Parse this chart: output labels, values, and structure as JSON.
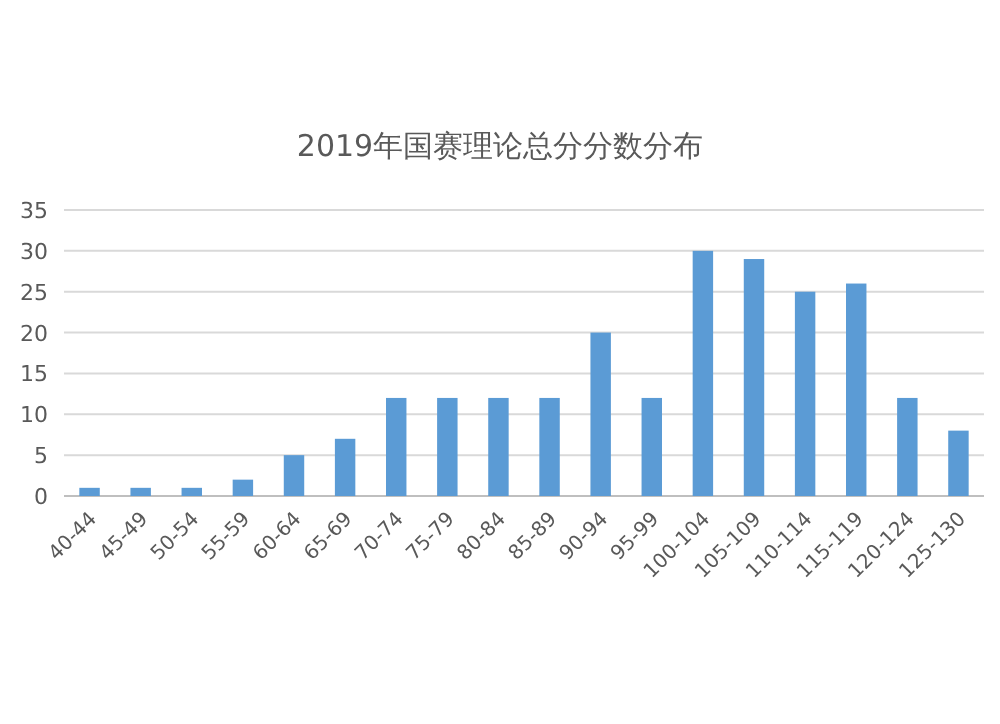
{
  "chart_data": {
    "type": "bar",
    "title": "2019年国赛理论总分分数分布",
    "categories": [
      "40-44",
      "45-49",
      "50-54",
      "55-59",
      "60-64",
      "65-69",
      "70-74",
      "75-79",
      "80-84",
      "85-89",
      "90-94",
      "95-99",
      "100-104",
      "105-109",
      "110-114",
      "115-119",
      "120-124",
      "125-130"
    ],
    "values": [
      1,
      1,
      1,
      2,
      5,
      7,
      12,
      12,
      12,
      12,
      20,
      12,
      30,
      29,
      25,
      26,
      12,
      8
    ],
    "color": "#5b9bd5",
    "ylim": [
      0,
      35
    ],
    "yticks": [
      0,
      5,
      10,
      15,
      20,
      25,
      30,
      35
    ],
    "grid": "y"
  }
}
